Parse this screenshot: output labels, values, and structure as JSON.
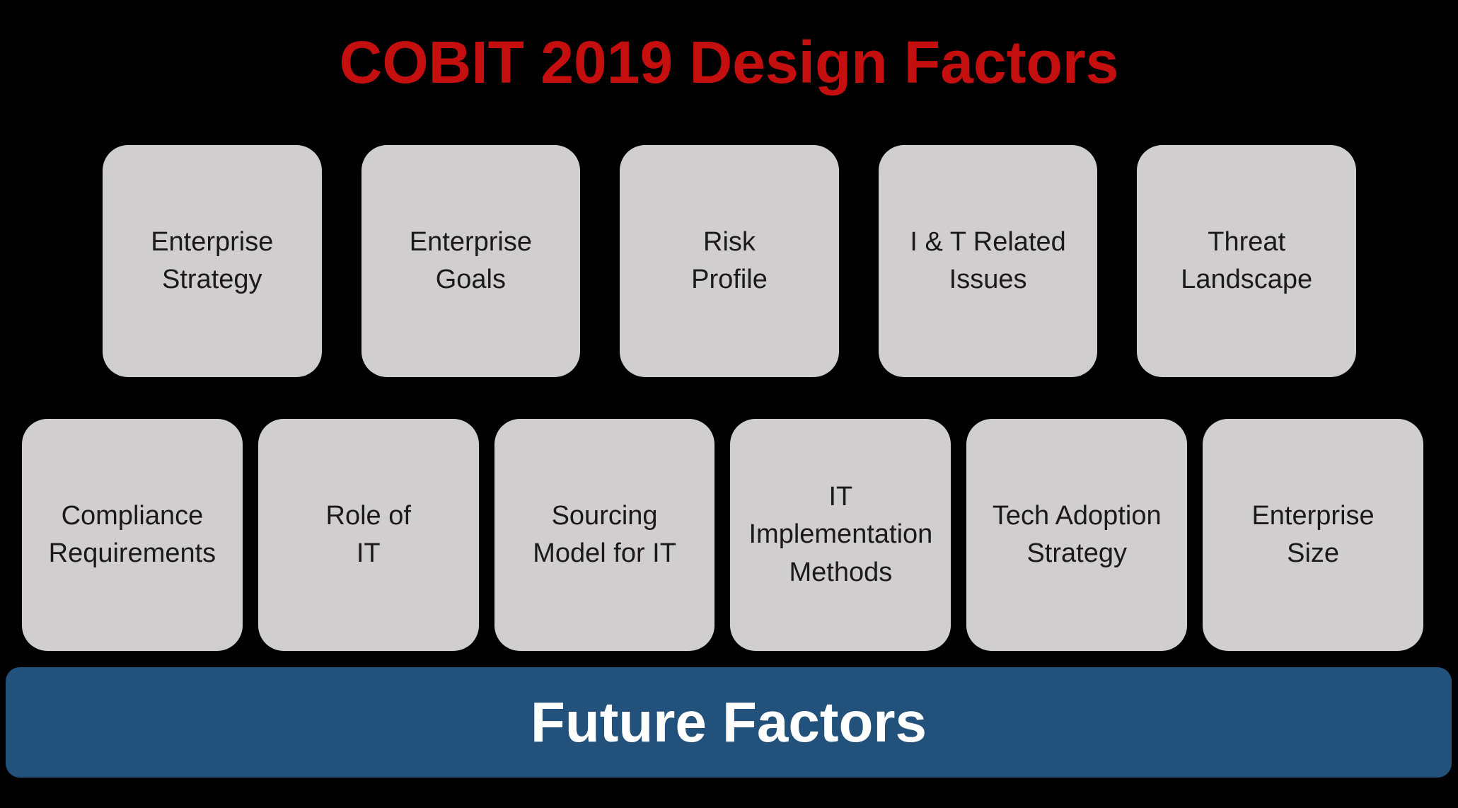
{
  "title": "COBIT 2019 Design Factors",
  "rows": [
    {
      "boxes": [
        {
          "label": "Enterprise\nStrategy"
        },
        {
          "label": "Enterprise\nGoals"
        },
        {
          "label": "Risk\nProfile"
        },
        {
          "label": "I & T Related\nIssues"
        },
        {
          "label": "Threat\nLandscape"
        }
      ]
    },
    {
      "boxes": [
        {
          "label": "Compliance\nRequirements"
        },
        {
          "label": "Role of\nIT"
        },
        {
          "label": "Sourcing\nModel for IT"
        },
        {
          "label": "IT\nImplementation\nMethods"
        },
        {
          "label": "Tech Adoption\nStrategy"
        },
        {
          "label": "Enterprise\nSize"
        }
      ]
    }
  ],
  "banner": {
    "label": "Future Factors"
  },
  "colors": {
    "background": "#000000",
    "title_text": "#C50F0F",
    "box_fill": "#D0CECE",
    "box_text": "#1A1A1A",
    "banner_fill": "#22527B",
    "banner_text": "#FFFFFF"
  }
}
